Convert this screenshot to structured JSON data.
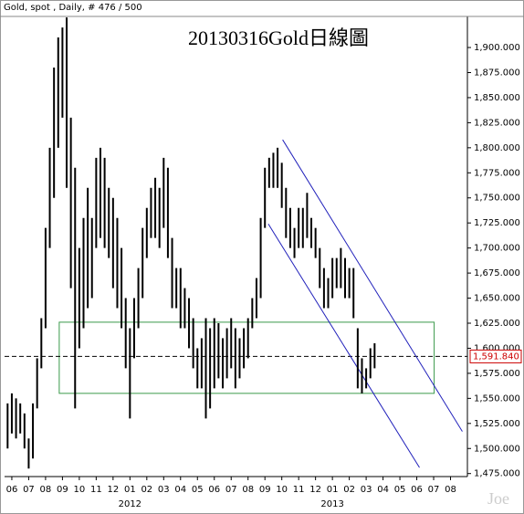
{
  "chart_data": {
    "type": "ohlc",
    "header": "Gold, spot , Daily, # 476 / 500",
    "title": "20130316Gold日線圖",
    "watermark": "Joe",
    "color": "#000000",
    "x": [
      -0.25,
      0,
      0.25,
      0.5,
      0.75,
      1,
      1.25,
      1.5,
      1.75,
      2,
      2.25,
      2.5,
      2.75,
      3,
      3.25,
      3.5,
      3.75,
      4,
      4.25,
      4.5,
      4.75,
      5,
      5.25,
      5.5,
      5.75,
      6,
      6.25,
      6.5,
      6.75,
      7,
      7.25,
      7.5,
      7.75,
      8,
      8.25,
      8.5,
      8.75,
      9,
      9.25,
      9.5,
      9.75,
      10,
      10.25,
      10.5,
      10.75,
      11,
      11.25,
      11.5,
      11.75,
      12,
      12.25,
      12.5,
      12.75,
      13,
      13.25,
      13.5,
      13.75,
      14,
      14.25,
      14.5,
      14.75,
      15,
      15.25,
      15.5,
      15.75,
      16,
      16.25,
      16.5,
      16.75,
      17,
      17.25,
      17.5,
      17.75,
      18,
      18.25,
      18.5,
      18.75,
      19,
      19.25,
      19.5,
      19.75,
      20,
      20.25,
      20.5,
      20.75,
      21,
      21.25,
      21.5
    ],
    "high": [
      1545,
      1555,
      1550,
      1545,
      1535,
      1510,
      1545,
      1590,
      1630,
      1720,
      1800,
      1880,
      1910,
      1920,
      1930,
      1830,
      1780,
      1700,
      1730,
      1760,
      1730,
      1790,
      1800,
      1790,
      1760,
      1750,
      1730,
      1700,
      1650,
      1620,
      1650,
      1680,
      1720,
      1740,
      1760,
      1770,
      1760,
      1790,
      1780,
      1710,
      1680,
      1680,
      1660,
      1650,
      1630,
      1600,
      1610,
      1630,
      1620,
      1630,
      1625,
      1610,
      1620,
      1630,
      1620,
      1610,
      1620,
      1630,
      1650,
      1670,
      1730,
      1780,
      1790,
      1795,
      1800,
      1785,
      1760,
      1740,
      1720,
      1740,
      1740,
      1755,
      1730,
      1720,
      1700,
      1680,
      1670,
      1690,
      1690,
      1700,
      1690,
      1680,
      1680,
      1620,
      1590,
      1580,
      1600,
      1605
    ],
    "low": [
      1500,
      1515,
      1510,
      1515,
      1500,
      1480,
      1490,
      1540,
      1580,
      1620,
      1700,
      1750,
      1800,
      1830,
      1760,
      1660,
      1540,
      1600,
      1620,
      1640,
      1650,
      1700,
      1710,
      1700,
      1690,
      1660,
      1640,
      1620,
      1580,
      1530,
      1590,
      1620,
      1650,
      1690,
      1710,
      1710,
      1700,
      1720,
      1690,
      1640,
      1640,
      1620,
      1620,
      1600,
      1580,
      1560,
      1560,
      1530,
      1540,
      1560,
      1570,
      1560,
      1570,
      1580,
      1560,
      1570,
      1580,
      1590,
      1620,
      1630,
      1650,
      1720,
      1760,
      1760,
      1760,
      1740,
      1710,
      1700,
      1690,
      1700,
      1700,
      1710,
      1700,
      1690,
      1660,
      1640,
      1640,
      1650,
      1660,
      1660,
      1650,
      1650,
      1630,
      1560,
      1555,
      1560,
      1570,
      1580
    ],
    "xlim": [
      -0.43,
      27
    ],
    "ylim": [
      1472,
      1931
    ],
    "xticks": [
      {
        "value": 0,
        "label": "06"
      },
      {
        "value": 1,
        "label": "07"
      },
      {
        "value": 2,
        "label": "08"
      },
      {
        "value": 3,
        "label": "09"
      },
      {
        "value": 4,
        "label": "10"
      },
      {
        "value": 5,
        "label": "11"
      },
      {
        "value": 6,
        "label": "12"
      },
      {
        "value": 7,
        "label": "01"
      },
      {
        "value": 8,
        "label": "02"
      },
      {
        "value": 9,
        "label": "03"
      },
      {
        "value": 10,
        "label": "04"
      },
      {
        "value": 11,
        "label": "05"
      },
      {
        "value": 12,
        "label": "06"
      },
      {
        "value": 13,
        "label": "07"
      },
      {
        "value": 14,
        "label": "08"
      },
      {
        "value": 15,
        "label": "09"
      },
      {
        "value": 16,
        "label": "10"
      },
      {
        "value": 17,
        "label": "11"
      },
      {
        "value": 18,
        "label": "12"
      },
      {
        "value": 19,
        "label": "01"
      },
      {
        "value": 20,
        "label": "02"
      },
      {
        "value": 21,
        "label": "03"
      },
      {
        "value": 22,
        "label": "04"
      },
      {
        "value": 23,
        "label": "05"
      },
      {
        "value": 24,
        "label": "06"
      },
      {
        "value": 25,
        "label": "07"
      },
      {
        "value": 26,
        "label": "08"
      }
    ],
    "year_labels": [
      {
        "value": 7,
        "label": "2012"
      },
      {
        "value": 19,
        "label": "2013"
      }
    ],
    "yticks": [
      {
        "value": 1475,
        "label": "1,475.000"
      },
      {
        "value": 1500,
        "label": "1,500.000"
      },
      {
        "value": 1525,
        "label": "1,525.000"
      },
      {
        "value": 1550,
        "label": "1,550.000"
      },
      {
        "value": 1575,
        "label": "1,575.000"
      },
      {
        "value": 1600,
        "label": "1,600.000"
      },
      {
        "value": 1625,
        "label": "1,625.000"
      },
      {
        "value": 1650,
        "label": "1,650.000"
      },
      {
        "value": 1675,
        "label": "1,675.000"
      },
      {
        "value": 1700,
        "label": "1,700.000"
      },
      {
        "value": 1725,
        "label": "1,725.000"
      },
      {
        "value": 1750,
        "label": "1,750.000"
      },
      {
        "value": 1775,
        "label": "1,775.000"
      },
      {
        "value": 1800,
        "label": "1,800.000"
      },
      {
        "value": 1825,
        "label": "1,825.000"
      },
      {
        "value": 1850,
        "label": "1,850.000"
      },
      {
        "value": 1875,
        "label": "1,875.000"
      },
      {
        "value": 1900,
        "label": "1,900.000"
      }
    ],
    "last_price": {
      "value": 1591.84,
      "label": "1,591.840",
      "color": "#cc0000"
    },
    "box": {
      "x": [
        2.81,
        25.03
      ],
      "y": [
        1555,
        1626
      ],
      "color": "#3a9a4a"
    },
    "channel_lines": [
      {
        "x": [
          16.05,
          26.7
        ],
        "y": [
          1808,
          1517
        ]
      },
      {
        "x": [
          15.2,
          24.16
        ],
        "y": [
          1724,
          1481
        ]
      }
    ],
    "channel_color": "#2222bb"
  }
}
